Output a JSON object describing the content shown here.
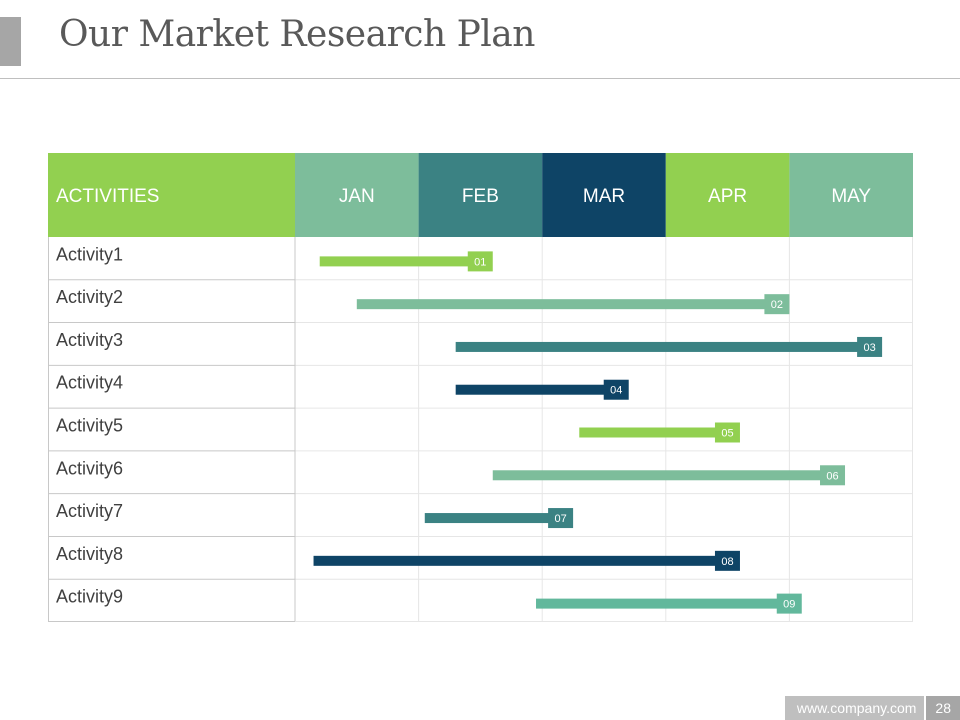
{
  "page": {
    "title": "Our Market Research Plan"
  },
  "colors": {
    "green": "#92d050",
    "sea": "#7dbd9b",
    "teal": "#3b8283",
    "navy": "#0e4466",
    "mint": "#62b89c"
  },
  "chart_data": {
    "type": "gantt",
    "header_label": "ACTIVITIES",
    "months": [
      {
        "label": "JAN",
        "color": "#7dbd9b"
      },
      {
        "label": "FEB",
        "color": "#3b8283"
      },
      {
        "label": "MAR",
        "color": "#0e4466"
      },
      {
        "label": "APR",
        "color": "#92d050"
      },
      {
        "label": "MAY",
        "color": "#7dbd9b"
      }
    ],
    "activities": [
      {
        "name": "Activity1",
        "start": 0.2,
        "end": 1.6,
        "tag": "01",
        "color": "#92d050"
      },
      {
        "name": "Activity2",
        "start": 0.5,
        "end": 4.0,
        "tag": "02",
        "color": "#7dbd9b"
      },
      {
        "name": "Activity3",
        "start": 1.3,
        "end": 4.75,
        "tag": "03",
        "color": "#3b8283"
      },
      {
        "name": "Activity4",
        "start": 1.3,
        "end": 2.7,
        "tag": "04",
        "color": "#0e4466"
      },
      {
        "name": "Activity5",
        "start": 2.3,
        "end": 3.6,
        "tag": "05",
        "color": "#92d050"
      },
      {
        "name": "Activity6",
        "start": 1.6,
        "end": 4.45,
        "tag": "06",
        "color": "#7dbd9b"
      },
      {
        "name": "Activity7",
        "start": 1.05,
        "end": 2.25,
        "tag": "07",
        "color": "#3b8283"
      },
      {
        "name": "Activity8",
        "start": 0.15,
        "end": 3.6,
        "tag": "08",
        "color": "#0e4466"
      },
      {
        "name": "Activity9",
        "start": 1.95,
        "end": 4.1,
        "tag": "09",
        "color": "#62b89c"
      }
    ]
  },
  "footer": {
    "site": "www.company.com",
    "page_number": "28"
  }
}
